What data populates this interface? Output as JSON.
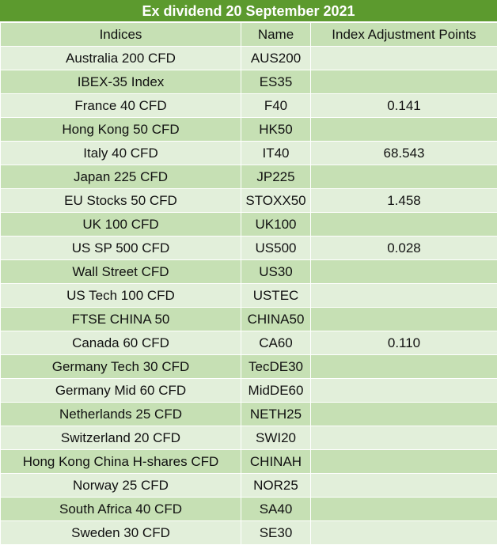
{
  "title": "Ex dividend 20 September 2021",
  "columns": {
    "indices": "Indices",
    "name": "Name",
    "points": "Index Adjustment Points"
  },
  "rows": [
    {
      "index": "Australia 200 CFD",
      "name": "AUS200",
      "points": ""
    },
    {
      "index": "IBEX-35 Index",
      "name": "ES35",
      "points": ""
    },
    {
      "index": "France 40 CFD",
      "name": "F40",
      "points": "0.141"
    },
    {
      "index": "Hong Kong 50 CFD",
      "name": "HK50",
      "points": ""
    },
    {
      "index": "Italy 40 CFD",
      "name": "IT40",
      "points": "68.543"
    },
    {
      "index": "Japan 225 CFD",
      "name": "JP225",
      "points": ""
    },
    {
      "index": "EU Stocks 50 CFD",
      "name": "STOXX50",
      "points": "1.458"
    },
    {
      "index": "UK 100 CFD",
      "name": "UK100",
      "points": ""
    },
    {
      "index": "US SP 500 CFD",
      "name": "US500",
      "points": "0.028"
    },
    {
      "index": "Wall Street CFD",
      "name": "US30",
      "points": ""
    },
    {
      "index": "US Tech 100 CFD",
      "name": "USTEC",
      "points": ""
    },
    {
      "index": "FTSE CHINA 50",
      "name": "CHINA50",
      "points": ""
    },
    {
      "index": "Canada 60 CFD",
      "name": "CA60",
      "points": "0.110"
    },
    {
      "index": "Germany Tech 30 CFD",
      "name": "TecDE30",
      "points": ""
    },
    {
      "index": "Germany Mid 60 CFD",
      "name": "MidDE60",
      "points": ""
    },
    {
      "index": "Netherlands 25 CFD",
      "name": "NETH25",
      "points": ""
    },
    {
      "index": "Switzerland 20 CFD",
      "name": "SWI20",
      "points": ""
    },
    {
      "index": "Hong Kong China H-shares CFD",
      "name": "CHINAH",
      "points": ""
    },
    {
      "index": "Norway 25 CFD",
      "name": "NOR25",
      "points": ""
    },
    {
      "index": "South Africa 40 CFD",
      "name": "SA40",
      "points": ""
    },
    {
      "index": "Sweden 30 CFD",
      "name": "SE30",
      "points": ""
    }
  ]
}
